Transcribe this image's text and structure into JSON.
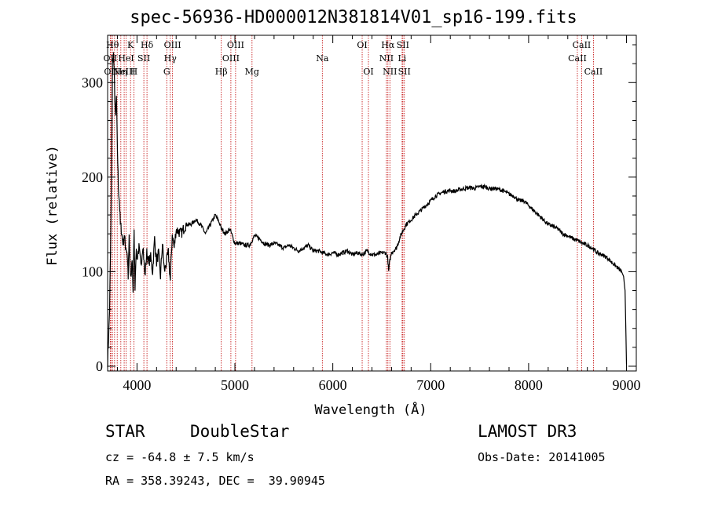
{
  "title": "spec-56936-HD000012N381814V01_sp16-199.fits",
  "info": {
    "class": "STAR",
    "subclass": "DoubleStar",
    "survey": "LAMOST DR3",
    "cz": "cz = -64.8 ± 7.5 km/s",
    "obs_date": "Obs-Date: 20141005",
    "coords": "RA = 358.39243, DEC =  39.90945"
  },
  "chart_data": {
    "type": "line",
    "xlabel": "Wavelength (Å)",
    "ylabel": "Flux (relative)",
    "xlim": [
      3700,
      9100
    ],
    "ylim": [
      -5,
      350
    ],
    "xticks": [
      4000,
      5000,
      6000,
      7000,
      8000,
      9000
    ],
    "yticks": [
      0,
      100,
      200,
      300
    ],
    "series": [
      {
        "x": [
          3700,
          3710,
          3720,
          3730,
          3740,
          3750,
          3760,
          3770,
          3780,
          3790,
          3800,
          3810,
          3820,
          3830,
          3840,
          3850,
          3860,
          3870,
          3880,
          3890,
          3900,
          3910,
          3920,
          3930,
          3940,
          3950,
          3960,
          3970,
          3980,
          3990,
          4000,
          4020,
          4040,
          4060,
          4080,
          4100,
          4120,
          4140,
          4160,
          4180,
          4200,
          4220,
          4240,
          4260,
          4280,
          4300,
          4320,
          4340,
          4360,
          4380,
          4400,
          4450,
          4500,
          4550,
          4600,
          4650,
          4700,
          4750,
          4800,
          4850,
          4860,
          4870,
          4900,
          4950,
          5000,
          5050,
          5100,
          5150,
          5200,
          5250,
          5300,
          5350,
          5400,
          5450,
          5500,
          5550,
          5600,
          5650,
          5700,
          5750,
          5800,
          5850,
          5900,
          5950,
          6000,
          6050,
          6100,
          6150,
          6200,
          6250,
          6300,
          6350,
          6400,
          6450,
          6500,
          6540,
          6560,
          6570,
          6580,
          6600,
          6650,
          6700,
          6750,
          6800,
          6850,
          6900,
          6950,
          7000,
          7050,
          7100,
          7150,
          7200,
          7250,
          7300,
          7350,
          7400,
          7450,
          7500,
          7550,
          7600,
          7650,
          7700,
          7750,
          7800,
          7850,
          7900,
          7950,
          8000,
          8050,
          8100,
          8150,
          8200,
          8250,
          8300,
          8350,
          8400,
          8450,
          8500,
          8550,
          8600,
          8650,
          8700,
          8750,
          8800,
          8850,
          8900,
          8950,
          8970,
          8985,
          8995,
          9000
        ],
        "y": [
          5,
          30,
          60,
          120,
          210,
          320,
          330,
          300,
          260,
          285,
          230,
          190,
          175,
          150,
          145,
          135,
          130,
          140,
          128,
          125,
          120,
          95,
          135,
          100,
          90,
          115,
          80,
          140,
          85,
          120,
          115,
          125,
          105,
          130,
          95,
          120,
          110,
          115,
          100,
          135,
          110,
          120,
          95,
          130,
          100,
          110,
          120,
          90,
          140,
          125,
          145,
          140,
          150,
          150,
          155,
          150,
          140,
          150,
          160,
          150,
          145,
          145,
          140,
          145,
          130,
          130,
          128,
          128,
          138,
          135,
          130,
          128,
          130,
          128,
          125,
          128,
          125,
          122,
          125,
          128,
          122,
          122,
          120,
          118,
          120,
          118,
          120,
          122,
          118,
          120,
          118,
          122,
          118,
          118,
          120,
          120,
          115,
          100,
          110,
          120,
          125,
          140,
          150,
          155,
          160,
          165,
          170,
          175,
          180,
          183,
          185,
          186,
          185,
          187,
          188,
          189,
          188,
          190,
          190,
          188,
          188,
          187,
          185,
          182,
          180,
          175,
          175,
          170,
          165,
          160,
          155,
          150,
          148,
          145,
          140,
          138,
          135,
          133,
          130,
          128,
          125,
          120,
          118,
          115,
          110,
          105,
          100,
          95,
          80,
          30,
          2
        ]
      }
    ],
    "lines": [
      {
        "x": 3727,
        "label": "OII",
        "row": 2
      },
      {
        "x": 3734,
        "label": "OII",
        "row": 3
      },
      {
        "x": 3750,
        "label": "Hθ",
        "row": 1
      },
      {
        "x": 3771,
        "label": "",
        "row": 0
      },
      {
        "x": 3798,
        "label": "",
        "row": 0
      },
      {
        "x": 3835,
        "label": "Hη",
        "row": 3
      },
      {
        "x": 3869,
        "label": "NeIII",
        "row": 3
      },
      {
        "x": 3889,
        "label": "HeI",
        "row": 2
      },
      {
        "x": 3934,
        "label": "K",
        "row": 1
      },
      {
        "x": 3968,
        "label": "H",
        "row": 3
      },
      {
        "x": 4070,
        "label": "SII",
        "row": 2
      },
      {
        "x": 4102,
        "label": "Hδ",
        "row": 1
      },
      {
        "x": 4304,
        "label": "G",
        "row": 3
      },
      {
        "x": 4340,
        "label": "Hγ",
        "row": 2
      },
      {
        "x": 4363,
        "label": "OIII",
        "row": 1
      },
      {
        "x": 4861,
        "label": "Hβ",
        "row": 3
      },
      {
        "x": 4959,
        "label": "OIII",
        "row": 2
      },
      {
        "x": 5007,
        "label": "OIII",
        "row": 1
      },
      {
        "x": 5175,
        "label": "Mg",
        "row": 3
      },
      {
        "x": 5893,
        "label": "Na",
        "row": 2
      },
      {
        "x": 6300,
        "label": "OI",
        "row": 1
      },
      {
        "x": 6364,
        "label": "OI",
        "row": 3
      },
      {
        "x": 6548,
        "label": "NII",
        "row": 2
      },
      {
        "x": 6563,
        "label": "Hα",
        "row": 1
      },
      {
        "x": 6583,
        "label": "NII",
        "row": 3
      },
      {
        "x": 6708,
        "label": "Li",
        "row": 2
      },
      {
        "x": 6716,
        "label": "SII",
        "row": 1
      },
      {
        "x": 6731,
        "label": "SII",
        "row": 3
      },
      {
        "x": 8498,
        "label": "CaII",
        "row": 2
      },
      {
        "x": 8542,
        "label": "CaII",
        "row": 1
      },
      {
        "x": 8662,
        "label": "CaII",
        "row": 3
      }
    ]
  }
}
